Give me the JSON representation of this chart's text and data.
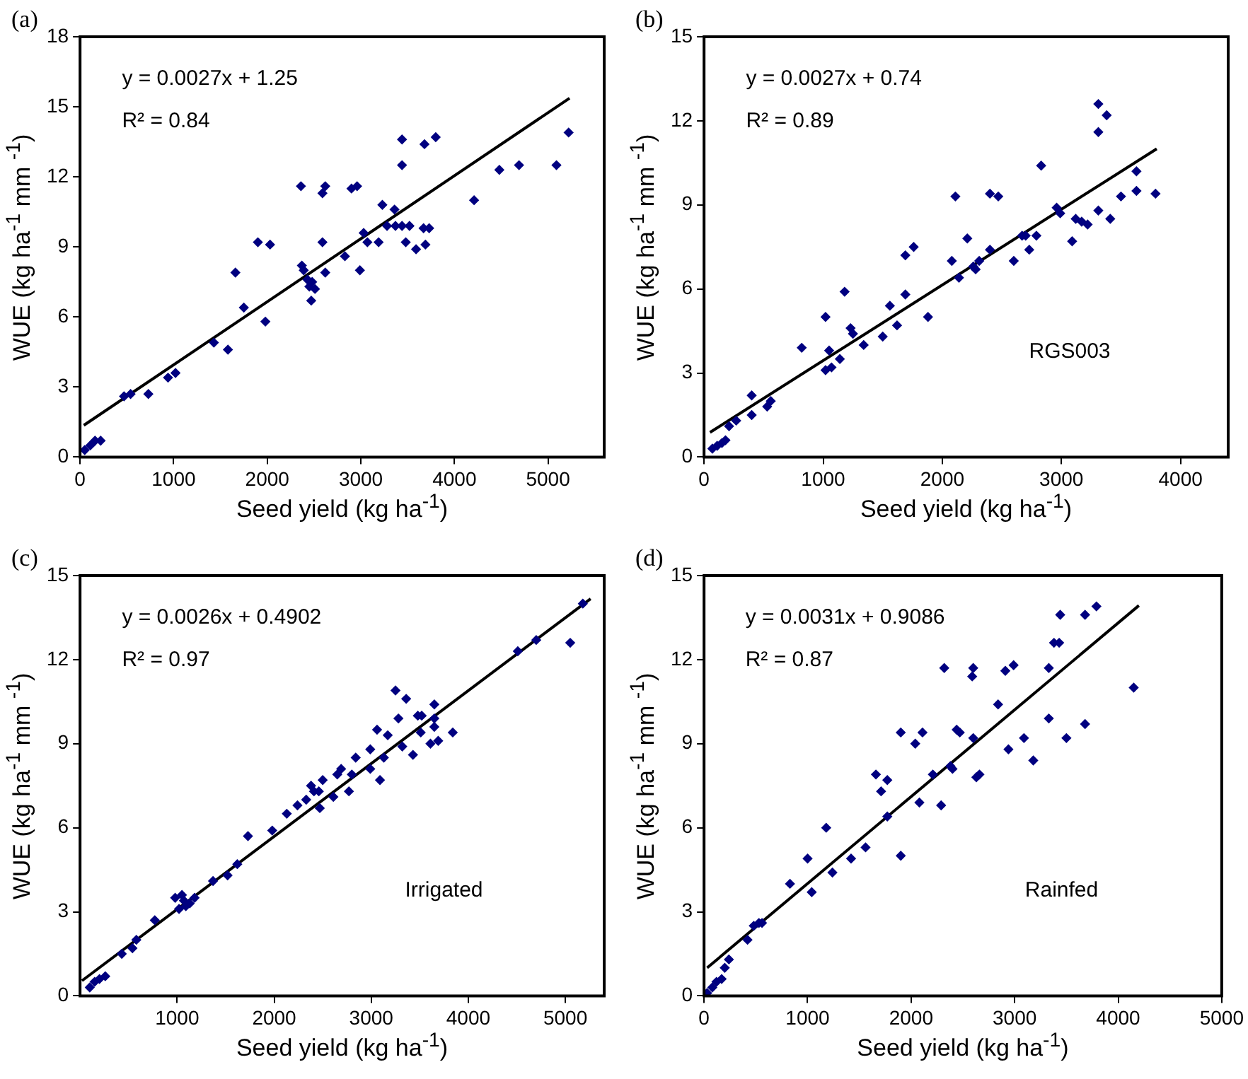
{
  "chart_data": [
    {
      "type": "scatter",
      "title": "(a)",
      "xlabel": "Seed yield (kg ha$^{-1}$)",
      "ylabel": "WUE (kg ha$^{-1}$ mm $^{-1}$)",
      "xlim": [
        0,
        5600
      ],
      "xticks": [
        0,
        1000,
        2000,
        3000,
        4000,
        5000
      ],
      "ylim": [
        0,
        18
      ],
      "yticks": [
        0,
        3,
        6,
        9,
        12,
        15,
        18
      ],
      "marker": "diamond",
      "annotations": [
        "y = 0.0027x + 1.25",
        "R² = 0.84"
      ],
      "series": [
        {
          "type": "scatter",
          "color": "#000080",
          "x": [
            50,
            110,
            160,
            220,
            470,
            540,
            730,
            940,
            1020,
            1430,
            1580,
            1660,
            1750,
            1900,
            1980,
            2030,
            2360,
            2370,
            2390,
            2430,
            2450,
            2480,
            2510,
            2470,
            2590,
            2620,
            2590,
            2620,
            2830,
            2900,
            2960,
            2990,
            3030,
            3070,
            3190,
            3230,
            3360,
            3280,
            3370,
            3440,
            3520,
            3480,
            3440,
            3440,
            3590,
            3690,
            3670,
            3730,
            3680,
            3800,
            4210,
            4480,
            4690,
            5090,
            5220
          ],
          "values": [
            0.3,
            0.5,
            0.7,
            0.7,
            2.6,
            2.7,
            2.7,
            3.4,
            3.6,
            4.9,
            4.6,
            7.9,
            6.4,
            9.2,
            5.8,
            9.1,
            11.6,
            8.2,
            8.0,
            7.6,
            7.3,
            7.5,
            7.2,
            6.7,
            11.3,
            11.6,
            9.2,
            7.9,
            8.6,
            11.5,
            11.6,
            8.0,
            9.6,
            9.2,
            9.2,
            10.8,
            10.6,
            9.9,
            9.9,
            9.9,
            9.9,
            9.2,
            13.6,
            12.5,
            8.9,
            9.1,
            9.8,
            9.8,
            13.4,
            13.7,
            11.0,
            12.3,
            12.5,
            12.5,
            13.9
          ]
        },
        {
          "type": "line",
          "marker": "none",
          "color": "#000000",
          "x": [
            40,
            5230
          ],
          "values": [
            1.36,
            15.37
          ]
        }
      ]
    },
    {
      "type": "scatter",
      "title": "(b)",
      "xlabel": "Seed yield (kg ha$^{-1}$)",
      "ylabel": "WUE (kg ha$^{-1}$ mm $^{-1}$)",
      "xlim": [
        0,
        4400
      ],
      "xticks": [
        0,
        1000,
        2000,
        3000,
        4000
      ],
      "ylim": [
        0,
        15
      ],
      "yticks": [
        0,
        3,
        6,
        9,
        12,
        15
      ],
      "marker": "diamond",
      "annotations": [
        "y = 0.0027x + 0.74",
        "R² = 0.89",
        "RGS003"
      ],
      "series": [
        {
          "type": "scatter",
          "color": "#000080",
          "x": [
            70,
            110,
            150,
            180,
            210,
            270,
            400,
            400,
            530,
            560,
            820,
            1020,
            1050,
            1020,
            1070,
            1140,
            1180,
            1230,
            1250,
            1340,
            1500,
            1560,
            1620,
            1690,
            1690,
            1760,
            1880,
            2080,
            2110,
            2140,
            2260,
            2310,
            2280,
            2210,
            2400,
            2470,
            2400,
            2600,
            2670,
            2730,
            2790,
            2700,
            2830,
            2960,
            2990,
            3090,
            3120,
            3170,
            3220,
            3310,
            3380,
            3310,
            3310,
            3410,
            3500,
            3630,
            3630,
            3790
          ],
          "values": [
            0.3,
            0.4,
            0.5,
            0.6,
            1.1,
            1.3,
            2.2,
            1.5,
            1.8,
            2.0,
            3.9,
            5.0,
            3.8,
            3.1,
            3.2,
            3.5,
            5.9,
            4.6,
            4.4,
            4.0,
            4.3,
            5.4,
            4.7,
            5.8,
            7.2,
            7.5,
            5.0,
            7.0,
            9.3,
            6.4,
            6.8,
            7.0,
            6.7,
            7.8,
            9.4,
            9.3,
            7.4,
            7.0,
            7.9,
            7.4,
            7.9,
            7.9,
            10.4,
            8.9,
            8.7,
            7.7,
            8.5,
            8.4,
            8.3,
            12.6,
            12.2,
            11.6,
            8.8,
            8.5,
            9.3,
            10.2,
            9.5,
            9.4
          ]
        },
        {
          "type": "line",
          "marker": "none",
          "color": "#000000",
          "x": [
            50,
            3800
          ],
          "values": [
            0.88,
            11.0
          ]
        }
      ]
    },
    {
      "type": "scatter",
      "title": "(c)",
      "xlabel": "Seed yield (kg ha$^{-1}$)",
      "ylabel": "WUE (kg ha$^{-1}$ mm $^{-1}$)",
      "xlim": [
        0,
        5400
      ],
      "xticks": [
        1000,
        2000,
        3000,
        4000,
        5000
      ],
      "ylim": [
        0,
        15
      ],
      "yticks": [
        0,
        3,
        6,
        9,
        12,
        15
      ],
      "marker": "diamond",
      "annotations": [
        "y = 0.0026x + 0.4902",
        "R² = 0.97",
        "Irrigated"
      ],
      "series": [
        {
          "type": "scatter",
          "color": "#000080",
          "x": [
            100,
            150,
            200,
            260,
            430,
            540,
            580,
            770,
            980,
            1050,
            1020,
            1090,
            1130,
            1180,
            1070,
            1370,
            1520,
            1620,
            1730,
            1980,
            2130,
            2240,
            2330,
            2380,
            2410,
            2470,
            2500,
            2460,
            2610,
            2650,
            2690,
            2770,
            2800,
            2840,
            2990,
            2990,
            3090,
            3130,
            3170,
            3060,
            3250,
            3360,
            3280,
            3320,
            3430,
            3480,
            3520,
            3510,
            3610,
            3650,
            3650,
            3650,
            3690,
            3840,
            4510,
            4700,
            5050,
            5180
          ],
          "values": [
            0.3,
            0.5,
            0.6,
            0.7,
            1.5,
            1.7,
            2.0,
            2.7,
            3.5,
            3.6,
            3.1,
            3.2,
            3.3,
            3.5,
            3.4,
            4.1,
            4.3,
            4.7,
            5.7,
            5.9,
            6.5,
            6.8,
            7.0,
            7.5,
            7.3,
            6.7,
            7.7,
            7.3,
            7.1,
            7.9,
            8.1,
            7.3,
            7.9,
            8.5,
            8.8,
            8.1,
            7.7,
            8.5,
            9.3,
            9.5,
            10.9,
            10.6,
            9.9,
            8.9,
            8.6,
            10.0,
            10.0,
            9.4,
            9.0,
            10.4,
            9.9,
            9.6,
            9.1,
            9.4,
            12.3,
            12.7,
            12.6,
            14.0
          ]
        },
        {
          "type": "line",
          "marker": "none",
          "color": "#000000",
          "x": [
            20,
            5260
          ],
          "values": [
            0.54,
            14.17
          ]
        }
      ]
    },
    {
      "type": "scatter",
      "title": "(d)",
      "xlabel": "Seed yield (kg ha$^{-1}$)",
      "ylabel": "WUE (kg ha$^{-1}$ mm $^{-1}$)",
      "xlim": [
        0,
        5000
      ],
      "xticks": [
        0,
        1000,
        2000,
        3000,
        4000,
        5000
      ],
      "ylim": [
        0,
        15
      ],
      "yticks": [
        0,
        3,
        6,
        9,
        12,
        15
      ],
      "marker": "diamond",
      "annotations": [
        "y = 0.0031x + 0.9086",
        "R² = 0.87",
        "Rainfed"
      ],
      "series": [
        {
          "type": "scatter",
          "color": "#000080",
          "x": [
            30,
            80,
            120,
            170,
            200,
            240,
            420,
            480,
            530,
            560,
            830,
            1040,
            1000,
            1180,
            1240,
            1420,
            1560,
            1770,
            1900,
            1660,
            1710,
            1770,
            1900,
            2040,
            2110,
            2080,
            2290,
            2210,
            2320,
            2600,
            2590,
            2380,
            2400,
            2440,
            2470,
            2600,
            2630,
            2660,
            2840,
            2940,
            3090,
            3180,
            2910,
            2990,
            3330,
            3330,
            3380,
            3430,
            3440,
            3500,
            3680,
            3680,
            3790,
            4150
          ],
          "values": [
            0.1,
            0.3,
            0.5,
            0.6,
            1.0,
            1.3,
            2.0,
            2.5,
            2.6,
            2.6,
            4.0,
            3.7,
            4.9,
            6.0,
            4.4,
            4.9,
            5.3,
            6.4,
            5.0,
            7.9,
            7.3,
            7.7,
            9.4,
            9.0,
            9.4,
            6.9,
            6.8,
            7.9,
            11.7,
            11.7,
            11.4,
            8.2,
            8.1,
            9.5,
            9.4,
            9.2,
            7.8,
            7.9,
            10.4,
            8.8,
            9.2,
            8.4,
            11.6,
            11.8,
            11.7,
            9.9,
            12.6,
            12.6,
            13.6,
            9.2,
            9.7,
            13.6,
            13.9,
            11.0
          ]
        },
        {
          "type": "line",
          "marker": "none",
          "color": "#000000",
          "x": [
            30,
            4200
          ],
          "values": [
            1.0,
            13.93
          ]
        }
      ]
    }
  ]
}
